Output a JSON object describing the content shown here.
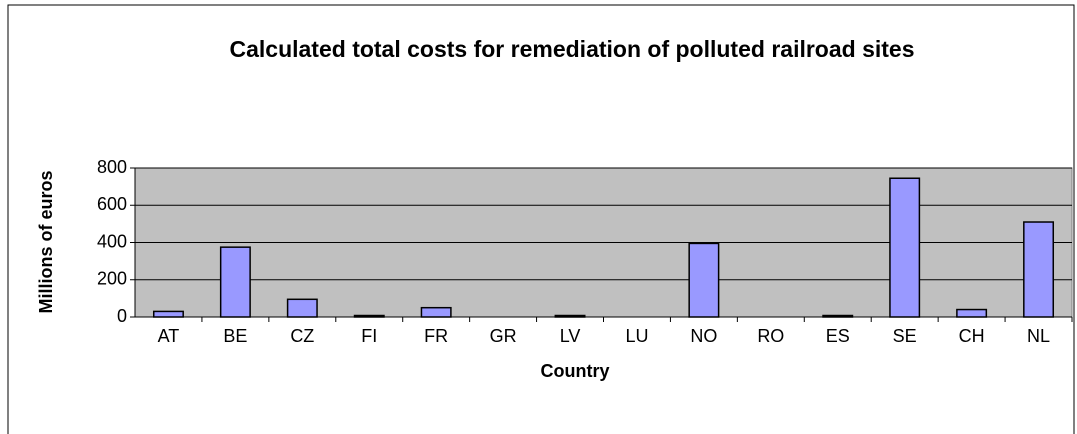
{
  "chart_data": {
    "type": "bar",
    "title": "Calculated total costs for remediation of polluted railroad sites",
    "xlabel": "Country",
    "ylabel": "Millions of euros",
    "categories": [
      "AT",
      "BE",
      "CZ",
      "FI",
      "FR",
      "GR",
      "LV",
      "LU",
      "NO",
      "RO",
      "ES",
      "SE",
      "CH",
      "NL"
    ],
    "values": [
      30,
      375,
      95,
      8,
      50,
      0,
      8,
      0,
      395,
      0,
      8,
      745,
      40,
      510
    ],
    "color": "#9999ff",
    "ylim": [
      0,
      800
    ],
    "yticks": [
      0,
      200,
      400,
      600,
      800
    ],
    "grid": true
  }
}
